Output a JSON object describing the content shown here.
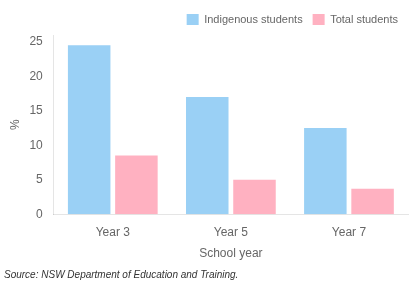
{
  "chart_data": {
    "type": "bar",
    "categories": [
      "Year 3",
      "Year 5",
      "Year 7"
    ],
    "series": [
      {
        "name": "Indigenous students",
        "values": [
          24.5,
          17.0,
          12.5
        ]
      },
      {
        "name": "Total students",
        "values": [
          8.5,
          5.0,
          3.7
        ]
      }
    ],
    "xlabel": "School year",
    "ylabel": "%",
    "ylim": [
      0,
      26
    ],
    "yticks": [
      0,
      5,
      10,
      15,
      20,
      25
    ],
    "grid": false,
    "legend": "upper right",
    "annotations": [
      "Source: NSW Department of Education and Training."
    ]
  }
}
